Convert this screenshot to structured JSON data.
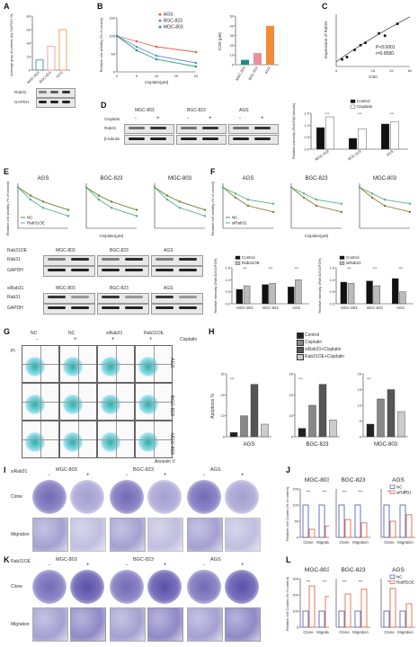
{
  "panels": {
    "A": {
      "letter": "A",
      "ylabel": "Average gray of protein (by GAPDH %)",
      "rows": [
        "Rab31",
        "GAPDH"
      ],
      "chart_data": {
        "type": "bar",
        "categories": [
          "MGC-803",
          "BGC-823",
          "AGS"
        ],
        "values": [
          15,
          35,
          60
        ],
        "ylim": [
          0,
          80
        ],
        "yticks": [
          "0",
          "20",
          "40",
          "60",
          "80"
        ],
        "xlabel": "",
        "ylabel": "Average gray of protein (by GAPDH %)"
      }
    },
    "B": {
      "letter": "B",
      "chart_data": {
        "type": "line",
        "x": [
          0,
          5,
          10,
          20
        ],
        "series": [
          {
            "name": "AGS",
            "values": [
              100,
              85,
              70,
              55
            ],
            "color": "#e8604c"
          },
          {
            "name": "BGC-823",
            "values": [
              100,
              70,
              45,
              25
            ],
            "color": "#5c8fd6"
          },
          {
            "name": "MGC-803",
            "values": [
              100,
              60,
              35,
              15
            ],
            "color": "#2aa17a"
          }
        ],
        "xlabel": "Cisplatin(μM)",
        "ylabel": "Relative cell viability (% of control)",
        "ylim": [
          0,
          150
        ],
        "yticks": [
          "0",
          "50",
          "100",
          "150"
        ],
        "xticks": [
          "0",
          "5",
          "10",
          "15",
          "20"
        ]
      },
      "ic50": {
        "type": "bar",
        "categories": [
          "MGC-803",
          "BGC-823",
          "AGS"
        ],
        "values": [
          5,
          12,
          40
        ],
        "colors": [
          "#1f8a8a",
          "#e8909a",
          "#f28c3a"
        ],
        "ylabel": "IC50 (μM)",
        "ylim": [
          0,
          50
        ],
        "yticks": [
          "0",
          "10",
          "20",
          "30",
          "40",
          "50"
        ]
      }
    },
    "C": {
      "letter": "C",
      "chart_data": {
        "type": "scatter",
        "x": [
          5,
          6,
          8,
          10,
          12,
          20,
          25,
          40
        ],
        "y": [
          1.1,
          1.2,
          1.5,
          1.7,
          1.8,
          2.2,
          2.1,
          2.6
        ],
        "ylabel": "Expression of Rab31",
        "xlabel": "IC50",
        "xticks": [
          "4",
          "16",
          "32",
          "64"
        ]
      },
      "stats": [
        "P<0.0001",
        "r=0.9580"
      ]
    },
    "D": {
      "letter": "D",
      "header": [
        "MGC-803",
        "BGC-823",
        "AGS"
      ],
      "cisplatin_label": "Cisplatin",
      "signs": [
        "-",
        "+",
        "-",
        "+",
        "-",
        "+"
      ],
      "rows": [
        "Rab31",
        "β-tubulin"
      ],
      "chart_data": {
        "type": "bar",
        "categories": [
          "MGC-803",
          "BGC-823",
          "AGS"
        ],
        "series": [
          {
            "name": "Control",
            "values": [
              0.9,
              0.45,
              1.05
            ]
          },
          {
            "name": "Cisplatin",
            "values": [
              1.35,
              0.85,
              1.15
            ]
          }
        ],
        "ylabel": "Relative intensity (Rab31/β-tubulin)",
        "ylim": [
          0,
          1.5
        ],
        "yticks": [
          "0.0",
          "0.5",
          "1.0",
          "1.5"
        ]
      }
    },
    "E": {
      "letter": "E",
      "titles": [
        "AGS",
        "BGC-823",
        "MGC-803"
      ],
      "ylabel": "Relative cell viability (% of control)",
      "legend": [
        "NC",
        "Rab31OE"
      ],
      "xlabel": "Cisplatin(μM)",
      "blot1": {
        "label": "Rab31OE",
        "groups": [
          "MGC-803",
          "BGC-823",
          "AGS"
        ],
        "rows": [
          "Rab31",
          "GAPDH"
        ]
      },
      "blot2": {
        "label": "siRab31",
        "groups": [
          "MGC-803",
          "BGC-823",
          "AGS"
        ],
        "rows": [
          "Rab31",
          "GAPDH"
        ]
      },
      "chart_data": {
        "type": "line",
        "x": [
          0,
          5,
          10,
          20
        ],
        "series": [
          {
            "name": "NC",
            "values": [
              100,
              80,
              65,
              45
            ]
          },
          {
            "name": "Rab31OE",
            "values": [
              100,
              70,
              50,
              30
            ]
          }
        ]
      }
    },
    "F": {
      "letter": "F",
      "titles": [
        "AGS",
        "BGC-823",
        "MGC-803"
      ],
      "ylabel": "Relative cell viability (% of control)",
      "legend": [
        "NC",
        "siRab31"
      ],
      "xlabel": "Cisplatin(μM)",
      "bar1": {
        "legend": [
          "Control",
          "Rab31OE"
        ],
        "ylabel": "Relative intensity (Rab31/GAPDH)",
        "categories": [
          "MGC-803",
          "BGC-823",
          "AGS"
        ],
        "series": [
          {
            "name": "Control",
            "values": [
              0.6,
              0.8,
              0.7
            ]
          },
          {
            "name": "Rab31OE",
            "values": [
              0.75,
              0.85,
              1.0
            ]
          }
        ],
        "ylim": [
          0,
          1.5
        ],
        "yticks": [
          "0.0",
          "0.5",
          "1.0",
          "1.5"
        ]
      },
      "bar2": {
        "legend": [
          "Control",
          "siRab31"
        ],
        "ylabel": "Relative intensity (Rab31/GAPDH)",
        "categories": [
          "MGC-803",
          "BGC-823",
          "AGS"
        ],
        "series": [
          {
            "name": "Control",
            "values": [
              0.9,
              0.95,
              1.05
            ]
          },
          {
            "name": "siRab31",
            "values": [
              0.85,
              0.75,
              0.5
            ]
          }
        ],
        "ylim": [
          0,
          1.5
        ],
        "yticks": [
          "0.0",
          "0.5",
          "1.0",
          "1.5"
        ]
      },
      "chart_data": {
        "type": "line",
        "x": [
          0,
          5,
          10,
          20
        ],
        "series": [
          {
            "name": "NC",
            "values": [
              100,
              75,
              55,
              40
            ]
          },
          {
            "name": "siRab31",
            "values": [
              100,
              85,
              70,
              60
            ]
          }
        ]
      }
    },
    "G": {
      "letter": "G",
      "cols": [
        "NC",
        "NC",
        "siRab31",
        "Rab31OE"
      ],
      "cisplatin": "Cisplatin",
      "signs": [
        "-",
        "+",
        "+",
        "+"
      ],
      "rows": [
        "AGS",
        "BGC-823",
        "MGC-803"
      ],
      "yaxis": "PI",
      "xaxis": "Annexin V"
    },
    "H": {
      "letter": "H",
      "legend": [
        "Control",
        "Cisplatin",
        "siRab31+Cisplatin",
        "Rab31OE+Cisplatin"
      ],
      "ylabel": "Apoptosis %",
      "chart_data": [
        {
          "type": "bar",
          "xlabel": "AGS",
          "values": [
            2,
            10,
            25,
            6
          ],
          "ylim": [
            0,
            30
          ],
          "yticks": [
            "0",
            "10",
            "20",
            "30"
          ]
        },
        {
          "type": "bar",
          "xlabel": "BGC-823",
          "values": [
            4,
            15,
            25,
            8
          ],
          "ylim": [
            0,
            30
          ],
          "yticks": [
            "0",
            "10",
            "20",
            "30"
          ]
        },
        {
          "type": "bar",
          "xlabel": "MGC-803",
          "values": [
            4,
            12,
            15,
            8
          ],
          "ylim": [
            0,
            20
          ],
          "yticks": [
            "0",
            "5",
            "10",
            "15",
            "20"
          ]
        }
      ],
      "colors": [
        "#222222",
        "#888888",
        "#555555",
        "#cccccc"
      ]
    },
    "I": {
      "letter": "I",
      "treat": "siRab31",
      "groups": [
        "MGC-803",
        "BGC-823",
        "AGS"
      ],
      "signs": [
        "-",
        "+",
        "-",
        "+",
        "-",
        "+"
      ],
      "rows": [
        "Clone",
        "Migration"
      ]
    },
    "J": {
      "letter": "J",
      "titles": [
        "MGC-803",
        "BGC-823",
        "AGS"
      ],
      "legend": [
        "NC",
        "siRab31"
      ],
      "ylabel": "Relative cell Counts (% of control)",
      "xcats": [
        "Clone",
        "Migration"
      ],
      "yticks": [
        "0",
        "50",
        "100",
        "150"
      ],
      "chart_data": [
        {
          "type": "bar",
          "categories": [
            "Clone",
            "Migration"
          ],
          "series": [
            {
              "name": "NC",
              "values": [
                100,
                100
              ]
            },
            {
              "name": "siRab31",
              "values": [
                25,
                35
              ]
            }
          ],
          "ylim": [
            0,
            150
          ]
        },
        {
          "type": "bar",
          "categories": [
            "Clone",
            "Migration"
          ],
          "series": [
            {
              "name": "NC",
              "values": [
                100,
                100
              ]
            },
            {
              "name": "siRab31",
              "values": [
                55,
                45
              ]
            }
          ],
          "ylim": [
            0,
            150
          ]
        },
        {
          "type": "bar",
          "categories": [
            "Clone",
            "Migration"
          ],
          "series": [
            {
              "name": "NC",
              "values": [
                100,
                100
              ]
            },
            {
              "name": "siRab31",
              "values": [
                50,
                70
              ]
            }
          ],
          "ylim": [
            0,
            150
          ]
        }
      ]
    },
    "K": {
      "letter": "K",
      "treat": "Rab31OE",
      "groups": [
        "MGC-803",
        "BGC-823",
        "AGS"
      ],
      "signs": [
        "-",
        "+",
        "-",
        "+",
        "-",
        "+"
      ],
      "rows": [
        "Clone",
        "Migration"
      ]
    },
    "L": {
      "letter": "L",
      "titles": [
        "MGC-803",
        "BGC-823",
        "AGS"
      ],
      "legend": [
        "NC",
        "Rab31OE"
      ],
      "ylabel": "Relative cell Counts (% of control)",
      "xcats": [
        "Clone",
        "Migration"
      ],
      "yticks": [
        "0",
        "100",
        "200",
        "300"
      ],
      "chart_data": [
        {
          "type": "bar",
          "categories": [
            "Clone",
            "Migration"
          ],
          "series": [
            {
              "name": "NC",
              "values": [
                100,
                100
              ]
            },
            {
              "name": "Rab31OE",
              "values": [
                255,
                190
              ]
            }
          ],
          "ylim": [
            0,
            300
          ]
        },
        {
          "type": "bar",
          "categories": [
            "Clone",
            "Migration"
          ],
          "series": [
            {
              "name": "NC",
              "values": [
                100,
                100
              ]
            },
            {
              "name": "Rab31OE",
              "values": [
                205,
                235
              ]
            }
          ],
          "ylim": [
            0,
            300
          ]
        },
        {
          "type": "bar",
          "categories": [
            "Clone",
            "Migration"
          ],
          "series": [
            {
              "name": "NC",
              "values": [
                100,
                100
              ]
            },
            {
              "name": "Rab31OE",
              "values": [
                240,
                145
              ]
            }
          ],
          "ylim": [
            0,
            300
          ]
        }
      ]
    }
  },
  "sig": "***"
}
